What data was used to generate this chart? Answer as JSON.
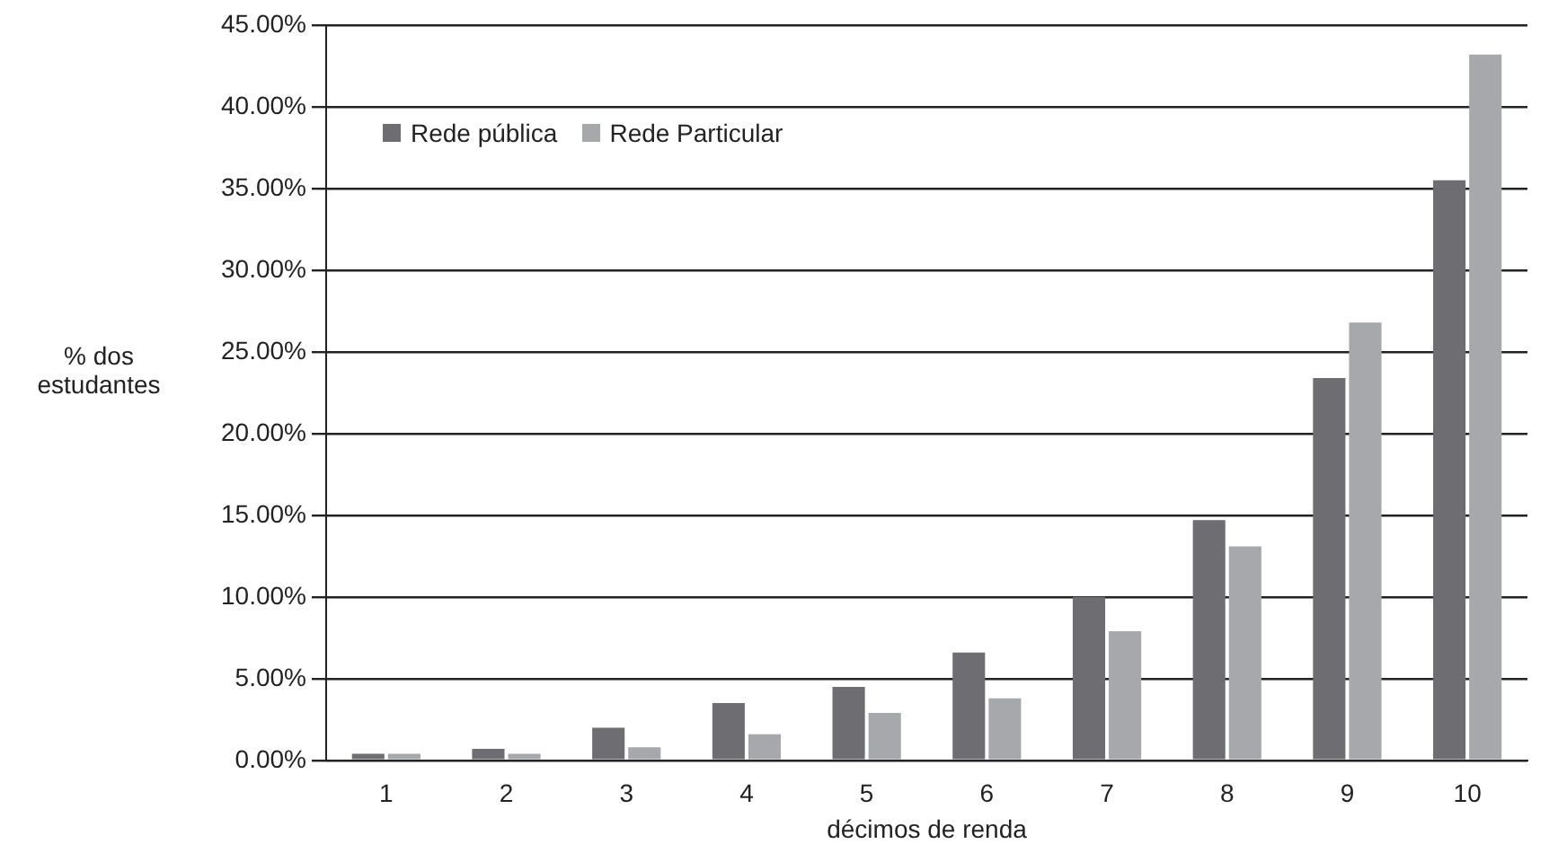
{
  "chart_data": {
    "type": "bar",
    "xlabel": "décimos de renda",
    "ylabel": "% dos estudantes",
    "categories": [
      "1",
      "2",
      "3",
      "4",
      "5",
      "6",
      "7",
      "8",
      "9",
      "10"
    ],
    "series": [
      {
        "name": "Rede pública",
        "color": "#6d6d72",
        "values": [
          0.4,
          0.7,
          2.0,
          3.5,
          4.5,
          6.6,
          10.0,
          14.7,
          23.4,
          35.5
        ]
      },
      {
        "name": "Rede Particular",
        "color": "#a7a8ac",
        "values": [
          0.4,
          0.4,
          0.8,
          1.6,
          2.9,
          3.8,
          7.9,
          13.1,
          26.8,
          43.2
        ]
      }
    ],
    "ylim": [
      0,
      45
    ],
    "yticks": [
      {
        "value": 0,
        "label": "0.00%"
      },
      {
        "value": 5,
        "label": "5.00%"
      },
      {
        "value": 10,
        "label": "10.00%"
      },
      {
        "value": 15,
        "label": "15.00%"
      },
      {
        "value": 20,
        "label": "20.00%"
      },
      {
        "value": 25,
        "label": "25.00%"
      },
      {
        "value": 30,
        "label": "30.00%"
      },
      {
        "value": 35,
        "label": "35.00%"
      },
      {
        "value": 40,
        "label": "40.00%"
      },
      {
        "value": 45,
        "label": "45.00%"
      }
    ],
    "grid": "y",
    "legend": "top left"
  }
}
